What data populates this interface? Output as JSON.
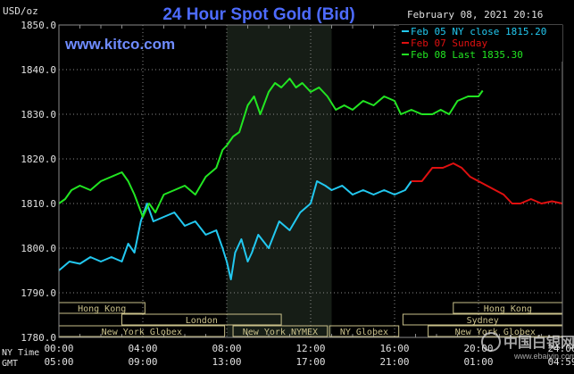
{
  "colors": {
    "background": "#000000",
    "grid": "#8a8a8a",
    "title": "#4d6bff",
    "website": "#6f8cff",
    "text": "#e0e0e0",
    "ny_close": "#22c8f0",
    "sunday": "#e01010",
    "last": "#22e622",
    "session_shade": "#161d16",
    "band_fill": "#c9c08a",
    "band_text": "#111111"
  },
  "chart": {
    "title": "24 Hour Spot Gold (Bid)",
    "units": "USD/oz",
    "website": "www.kitco.com",
    "datetime": "February 08, 2021 20:16",
    "ny_time_label": "NY Time",
    "gmt_label": "GMT",
    "watermark": "中国白银网",
    "watermark_url": "www.ebaiyin.com"
  },
  "chart_data": {
    "type": "line",
    "title": "24 Hour Spot Gold (Bid)",
    "ylabel": "USD/oz",
    "ylim": [
      1780,
      1850
    ],
    "y_ticks": [
      "1850.0",
      "1840.0",
      "1830.0",
      "1820.0",
      "1810.0",
      "1800.0",
      "1790.0",
      "1780.0"
    ],
    "y_tick_values": [
      1850,
      1840,
      1830,
      1820,
      1810,
      1800,
      1790,
      1780
    ],
    "xlim": [
      0,
      24
    ],
    "x_ticks_ny": [
      "00:00",
      "04:00",
      "08:00",
      "12:00",
      "16:00",
      "20:00",
      "24:00"
    ],
    "x_ticks_gmt": [
      "05:00",
      "09:00",
      "13:00",
      "17:00",
      "21:00",
      "01:00",
      "04:59"
    ],
    "x_tick_values": [
      0,
      4,
      8,
      12,
      16,
      20,
      24
    ],
    "grid": true,
    "legend_position": "top-right",
    "shaded_session": [
      8,
      13
    ],
    "series": [
      {
        "name": "Feb 05 NY close 1815.20",
        "color": "#22c8f0",
        "x": [
          0,
          0.5,
          1,
          1.5,
          2,
          2.5,
          3,
          3.3,
          3.6,
          3.9,
          4.2,
          4.5,
          5,
          5.5,
          6,
          6.5,
          7,
          7.5,
          7.8,
          8,
          8.2,
          8.4,
          8.7,
          9,
          9.2,
          9.5,
          10,
          10.5,
          11,
          11.5,
          12,
          12.3,
          12.7,
          13,
          13.5,
          14,
          14.5,
          15,
          15.5,
          16,
          16.5,
          16.8
        ],
        "y": [
          1795,
          1797,
          1796.5,
          1798,
          1797,
          1798,
          1797,
          1801,
          1799,
          1806,
          1810,
          1806,
          1807,
          1808,
          1805,
          1806,
          1803,
          1804,
          1800,
          1797,
          1793,
          1799,
          1802,
          1797,
          1799,
          1803,
          1800,
          1806,
          1804,
          1808,
          1810,
          1815,
          1814,
          1813,
          1814,
          1812,
          1813,
          1812,
          1813,
          1812,
          1813,
          1815
        ]
      },
      {
        "name": "Feb 07 Sunday",
        "color": "#e01010",
        "x": [
          16.8,
          17.3,
          17.8,
          18.3,
          18.8,
          19.2,
          19.6,
          20,
          20.4,
          20.8,
          21.2,
          21.6,
          22,
          22.5,
          23,
          23.5,
          24
        ],
        "y": [
          1815,
          1815,
          1818,
          1818,
          1819,
          1818,
          1816,
          1815,
          1814,
          1813,
          1812,
          1810,
          1810,
          1811,
          1810,
          1810.5,
          1810
        ]
      },
      {
        "name": "Feb 08 Last 1835.30",
        "color": "#22e622",
        "x": [
          0,
          0.3,
          0.6,
          1,
          1.5,
          2,
          2.5,
          3,
          3.3,
          3.6,
          4,
          4.3,
          4.6,
          5,
          5.5,
          6,
          6.5,
          7,
          7.5,
          7.8,
          8,
          8.3,
          8.6,
          9,
          9.3,
          9.6,
          10,
          10.3,
          10.6,
          11,
          11.3,
          11.6,
          12,
          12.4,
          12.8,
          13.2,
          13.6,
          14,
          14.5,
          15,
          15.5,
          16,
          16.3,
          16.8,
          17.3,
          17.8,
          18.2,
          18.6,
          19,
          19.5,
          20,
          20.2
        ],
        "y": [
          1810,
          1811,
          1813,
          1814,
          1813,
          1815,
          1816,
          1817,
          1815,
          1812,
          1807,
          1810,
          1808,
          1812,
          1813,
          1814,
          1812,
          1816,
          1818,
          1822,
          1823,
          1825,
          1826,
          1832,
          1834,
          1830,
          1835,
          1837,
          1836,
          1838,
          1836,
          1837,
          1835,
          1836,
          1834,
          1831,
          1832,
          1831,
          1833,
          1832,
          1834,
          1833,
          1830,
          1831,
          1830,
          1830,
          1831,
          1830,
          1833,
          1834,
          1834,
          1835.3
        ]
      }
    ]
  },
  "bands": [
    {
      "label": "Hong Kong",
      "row": 0,
      "start": 0,
      "end": 4.1
    },
    {
      "label": "Hong Kong",
      "row": 0,
      "start": 18.8,
      "end": 24
    },
    {
      "label": "London",
      "row": 1,
      "start": 3,
      "end": 10.6
    },
    {
      "label": "Sydney",
      "row": 1,
      "start": 16.4,
      "end": 24
    },
    {
      "label": "New York Globex",
      "row": 2,
      "start": 0,
      "end": 7.9
    },
    {
      "label": "New York NYMEX",
      "row": 2,
      "start": 8.3,
      "end": 12.8
    },
    {
      "label": "NY Globex",
      "row": 2,
      "start": 12.9,
      "end": 16.2
    },
    {
      "label": "New York Globex",
      "row": 2,
      "start": 17.6,
      "end": 24
    }
  ]
}
